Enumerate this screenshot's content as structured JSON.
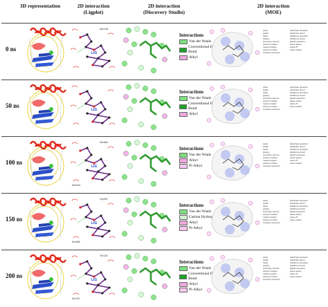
{
  "headers": {
    "col1": "3D representation",
    "col2_l1": "2D interaction",
    "col2_l2": "(Ligplot)",
    "col3_l1": "2D interaction",
    "col3_l2": "(Discovery Studio)",
    "col4_l1": "2D interaction",
    "col4_l2": "(MOE)"
  },
  "interactions_title": "Interactions",
  "rows": [
    {
      "time": "0 ns",
      "legend": [
        "Van der Waals",
        "Conventional Hydrogen Bond",
        "Alkyl"
      ],
      "ligplot_labels": [
        "LIG",
        "Asn146"
      ]
    },
    {
      "time": "50 ns",
      "legend": [
        "Van der Waals",
        "Conventional Hydrogen Bond",
        "Alkyl"
      ],
      "ligplot_labels": [
        "LIG"
      ]
    },
    {
      "time": "100 ns",
      "legend": [
        "Van der Waals",
        "Alkyl",
        "Pi-Alkyl"
      ],
      "ligplot_labels": [
        "LIG",
        "Ser666",
        "Met164"
      ]
    },
    {
      "time": "150 ns",
      "legend": [
        "Van der Waals",
        "Carbon Hydrogen Bond",
        "Alkyl",
        "Pi-Alkyl"
      ],
      "ligplot_labels": [
        "LIG",
        "Gly159",
        "Ser666"
      ]
    },
    {
      "time": "200 ns",
      "legend": [
        "Van der Waals",
        "Conventional Hydrogen Bond",
        "Alkyl",
        "Pi-Alkyl"
      ],
      "ligplot_labels": [
        "LIG",
        "Thr125",
        "Ser187"
      ]
    }
  ],
  "moe_legend": [
    [
      "polar",
      "sidechain acceptor"
    ],
    [
      "acidic",
      "sidechain donor"
    ],
    [
      "basic",
      "backbone acceptor"
    ],
    [
      "greasy",
      "backbone donor"
    ],
    [
      "proximity contour",
      "ligand exposure"
    ],
    [
      "solvent residue",
      "arene-arene"
    ],
    [
      "metal complex",
      "arene-H"
    ],
    [
      "solvent contact",
      "arene-cation"
    ],
    [
      "receptor exposure",
      ""
    ]
  ],
  "legend_colors": {
    "Van der Waals": "#7ee07e",
    "Conventional Hydrogen Bond": "#1fa12a",
    "Carbon Hydrogen Bond": "#d3f0d3",
    "Alkyl": "#f0a7e0",
    "Pi-Alkyl": "#f6c7ee"
  }
}
